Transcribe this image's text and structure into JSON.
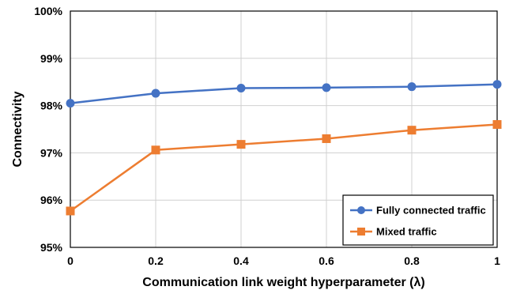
{
  "chart_data": {
    "type": "line",
    "xlabel": "Communication link weight hyperparameter (λ)",
    "ylabel": "Connectivity",
    "xlim": [
      0,
      1
    ],
    "ylim": [
      95,
      100
    ],
    "x_ticks": [
      "0",
      "0.2",
      "0.4",
      "0.6",
      "0.8",
      "1"
    ],
    "y_ticks": [
      "95%",
      "96%",
      "97%",
      "98%",
      "99%",
      "100%"
    ],
    "x": [
      0,
      0.2,
      0.4,
      0.6,
      0.8,
      1
    ],
    "grid": true,
    "legend_position": "bottom-right",
    "series": [
      {
        "name": "Fully connected traffic",
        "color": "#4472C4",
        "marker": "circle",
        "values": [
          98.05,
          98.26,
          98.37,
          98.38,
          98.4,
          98.45
        ]
      },
      {
        "name": "Mixed traffic",
        "color": "#ED7D31",
        "marker": "square",
        "values": [
          95.77,
          97.06,
          97.18,
          97.3,
          97.48,
          97.6
        ]
      }
    ]
  }
}
